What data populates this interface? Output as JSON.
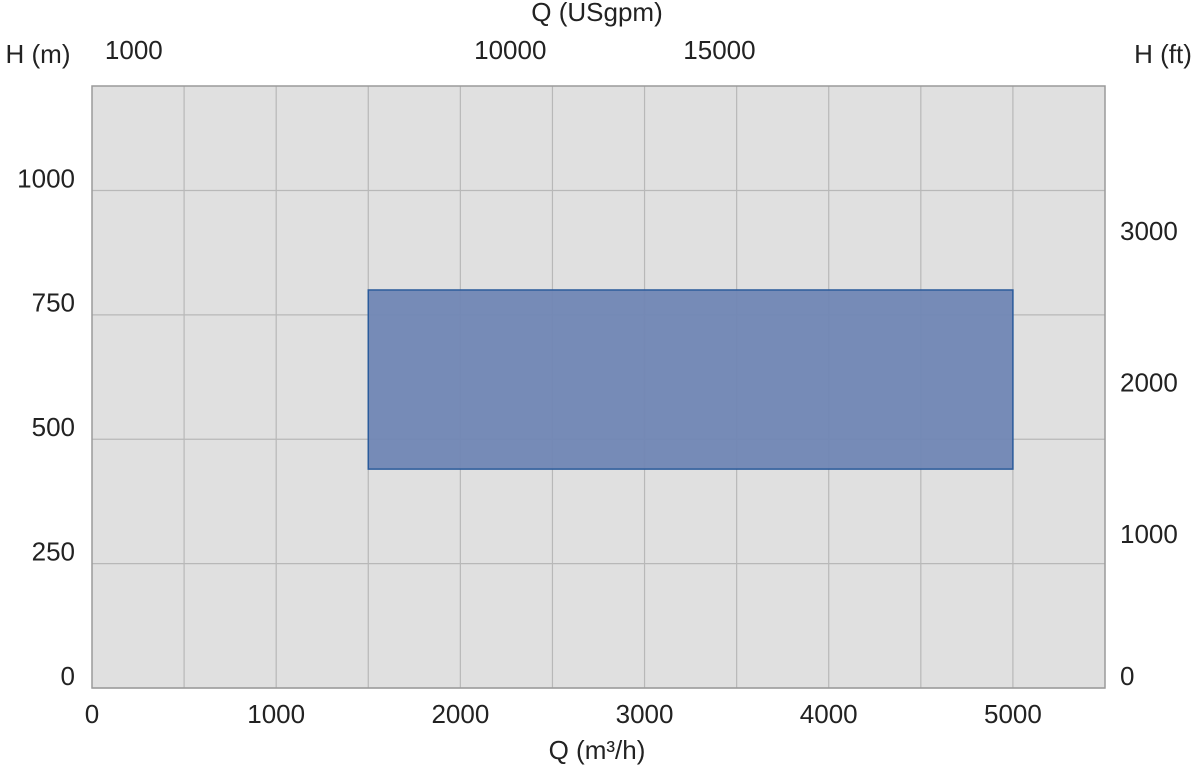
{
  "chart_data": {
    "type": "range",
    "title": "Q (USgpm)",
    "x_label": "Q (m³/h)",
    "y_label": "H (m)",
    "y2_label": "H (ft)",
    "x": [
      1500,
      5000
    ],
    "y": [
      440,
      800
    ],
    "color": "#7086b4",
    "edge_color": "#2b5b9b",
    "plot_background": "#e0e0e0",
    "xlim": [
      0,
      5500
    ],
    "xticks": [
      0,
      1000,
      2000,
      3000,
      4000,
      5000
    ],
    "xgrid": [
      500,
      1000,
      1500,
      2000,
      2500,
      3000,
      3500,
      4000,
      4500,
      5000
    ],
    "ylim": [
      0,
      1210
    ],
    "yticks": [
      0,
      250,
      500,
      750,
      1000
    ],
    "y2lim": [
      0,
      3970
    ],
    "y2ticks": [
      0,
      1000,
      2000,
      3000
    ],
    "x2lim": [
      0,
      24217
    ],
    "x2ticks": [
      1000,
      10000,
      15000
    ],
    "grid": true
  }
}
